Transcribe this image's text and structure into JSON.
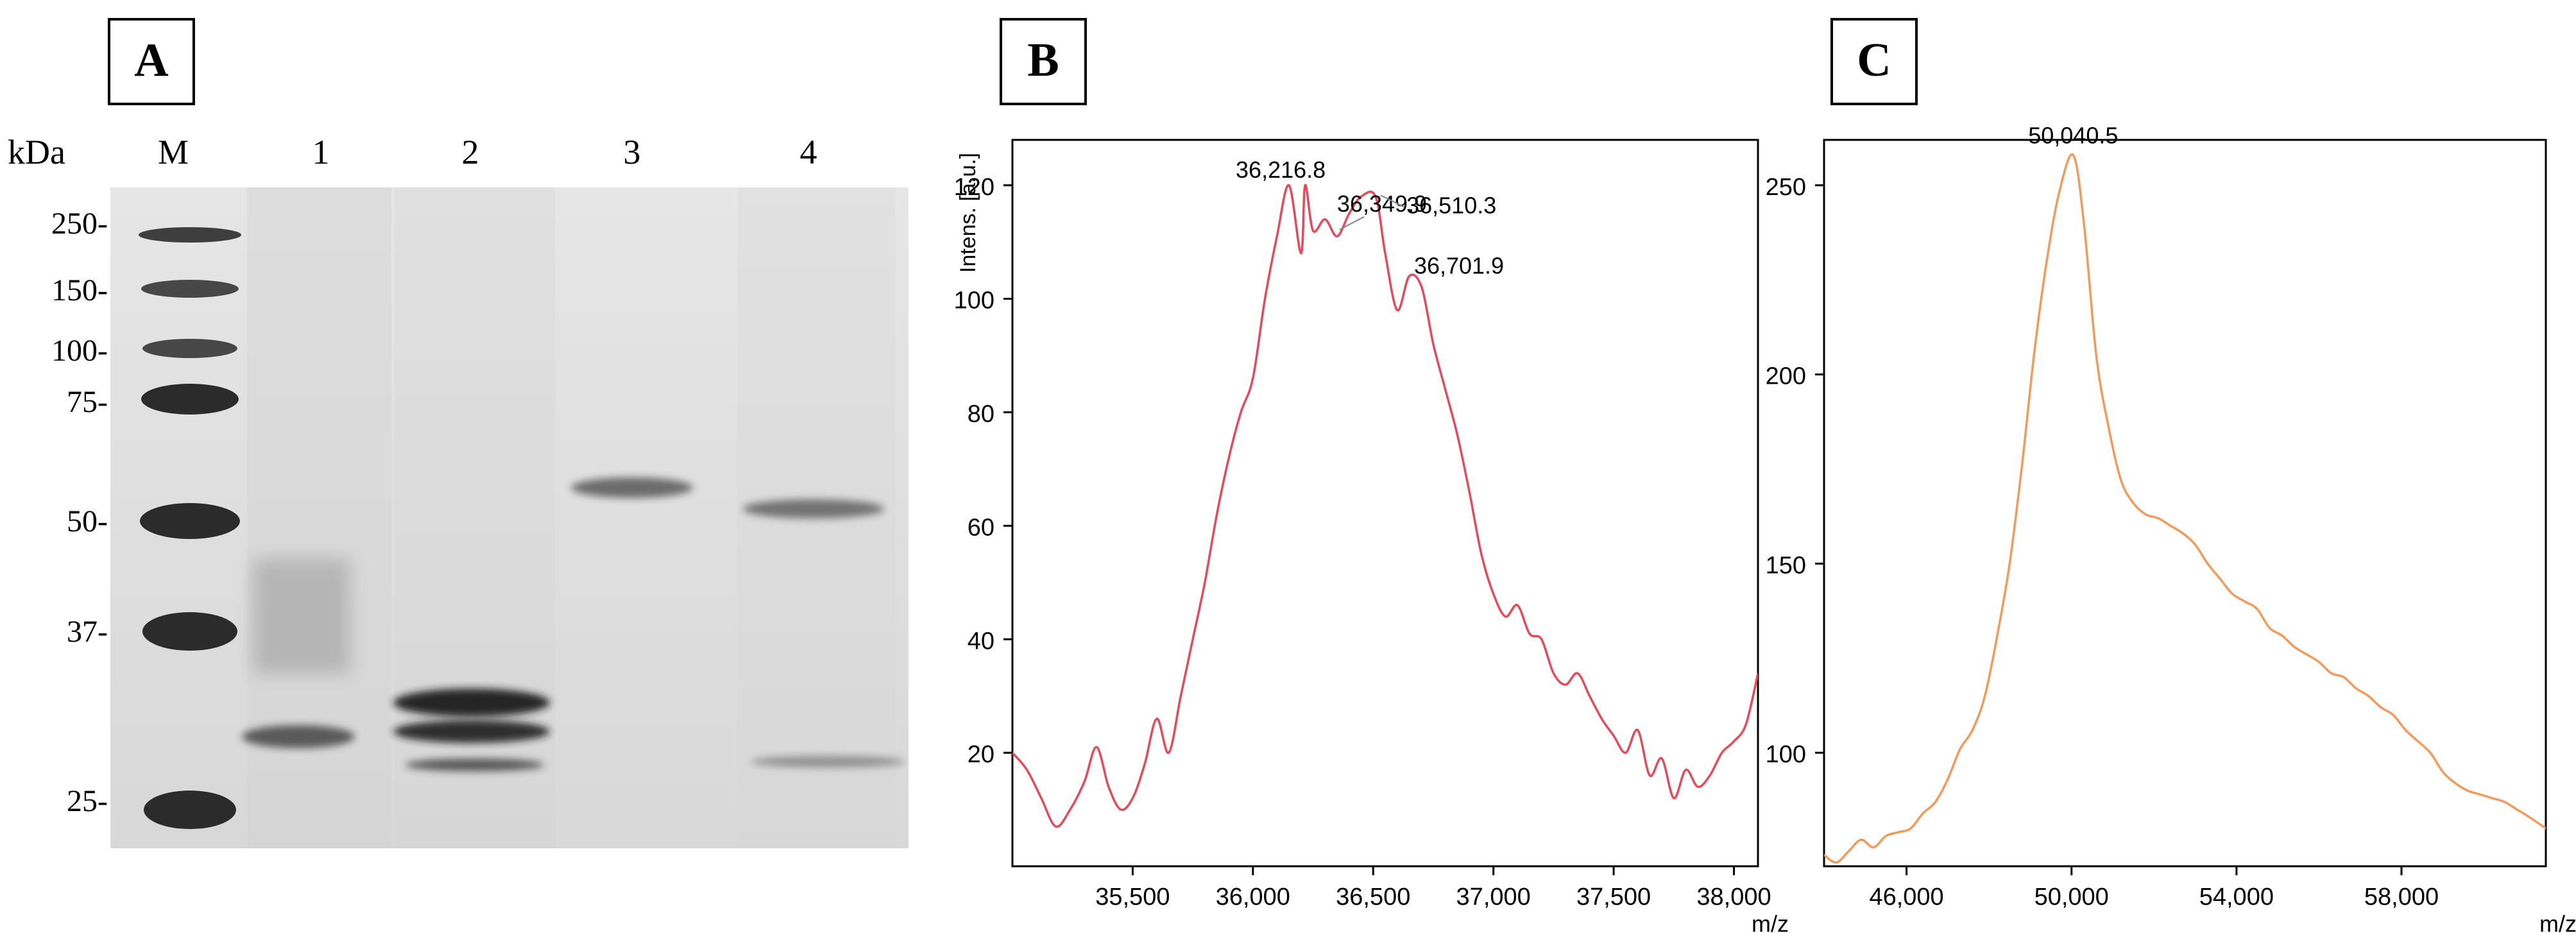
{
  "panels": {
    "A": {
      "label": "A",
      "unit_label": "kDa",
      "lane_labels": [
        "M",
        "1",
        "2",
        "3",
        "4"
      ],
      "marker_labels": [
        "250-",
        "150-",
        "100-",
        "75-",
        "50-",
        "37-",
        "25-"
      ]
    },
    "B": {
      "label": "B"
    },
    "C": {
      "label": "C"
    }
  },
  "colors": {
    "spectrum_B": "#e8485a",
    "spectrum_C": "#f39a5a",
    "axis": "#000000",
    "gel_background": "#dedede",
    "band": "#2b2b2b"
  },
  "chart_data": [
    {
      "type": "line",
      "panel": "B",
      "ylabel": "Intens. [a.u.]",
      "xlabel": "m/z",
      "xlim": [
        35000,
        38100
      ],
      "ylim": [
        0,
        128
      ],
      "xticks": [
        35500,
        36000,
        36500,
        37000,
        37500,
        38000
      ],
      "xtick_labels": [
        "35,500",
        "36,000",
        "36,500",
        "37,000",
        "37,500",
        "38,000"
      ],
      "yticks": [
        20,
        40,
        60,
        80,
        100,
        120
      ],
      "ytick_labels": [
        "20",
        "40",
        "60",
        "80",
        "100",
        "120"
      ],
      "annotations": [
        {
          "text": "36,216.8",
          "x": 36216.8,
          "y": 120
        },
        {
          "text": "36,349.9",
          "x": 36349.9,
          "y": 114
        },
        {
          "text": "36,510.3",
          "x": 36510.3,
          "y": 118
        },
        {
          "text": "36,701.9",
          "x": 36701.9,
          "y": 104
        }
      ],
      "x": [
        35000,
        35060,
        35120,
        35180,
        35240,
        35300,
        35350,
        35400,
        35450,
        35500,
        35550,
        35600,
        35650,
        35700,
        35750,
        35800,
        35850,
        35900,
        35950,
        36000,
        36050,
        36100,
        36150,
        36200,
        36217,
        36250,
        36300,
        36350,
        36400,
        36450,
        36510,
        36550,
        36600,
        36650,
        36702,
        36750,
        36800,
        36850,
        36900,
        36950,
        37000,
        37050,
        37100,
        37150,
        37200,
        37250,
        37300,
        37350,
        37400,
        37450,
        37500,
        37550,
        37600,
        37650,
        37700,
        37750,
        37800,
        37850,
        37900,
        37950,
        38000,
        38050,
        38100
      ],
      "y": [
        20,
        17,
        12,
        7,
        10,
        15,
        21,
        14,
        10,
        12,
        18,
        26,
        20,
        30,
        40,
        50,
        62,
        72,
        80,
        86,
        100,
        111,
        120,
        108,
        120,
        112,
        114,
        111,
        115,
        118,
        118,
        108,
        98,
        104,
        102,
        92,
        84,
        76,
        66,
        55,
        48,
        44,
        46,
        41,
        40,
        34,
        32,
        34,
        30,
        26,
        23,
        20,
        24,
        16,
        19,
        12,
        17,
        14,
        16,
        20,
        22,
        25,
        34
      ]
    },
    {
      "type": "line",
      "panel": "C",
      "xlabel": "m/z",
      "xlim": [
        44000,
        61500
      ],
      "ylim": [
        70,
        262
      ],
      "xticks": [
        46000,
        50000,
        54000,
        58000
      ],
      "xtick_labels": [
        "46,000",
        "50,000",
        "54,000",
        "58,000"
      ],
      "yticks": [
        100,
        150,
        200,
        250
      ],
      "ytick_labels": [
        "100",
        "150",
        "200",
        "250"
      ],
      "annotations": [
        {
          "text": "50,040.5",
          "x": 50040.5,
          "y": 258
        }
      ],
      "x": [
        44000,
        44300,
        44600,
        44900,
        45200,
        45500,
        45800,
        46100,
        46400,
        46700,
        47000,
        47300,
        47600,
        47900,
        48200,
        48500,
        48800,
        49100,
        49400,
        49700,
        50040,
        50300,
        50600,
        50900,
        51200,
        51500,
        51800,
        52100,
        52400,
        52700,
        53000,
        53300,
        53600,
        53900,
        54200,
        54500,
        54800,
        55100,
        55400,
        55700,
        56000,
        56300,
        56600,
        56900,
        57200,
        57500,
        57800,
        58100,
        58400,
        58700,
        59000,
        59300,
        59600,
        59900,
        60200,
        60500,
        60800,
        61100,
        61500
      ],
      "y": [
        73,
        71,
        74,
        77,
        75,
        78,
        79,
        80,
        84,
        87,
        93,
        101,
        106,
        115,
        131,
        150,
        176,
        206,
        230,
        248,
        258,
        240,
        205,
        186,
        172,
        166,
        163,
        162,
        160,
        158,
        155,
        150,
        146,
        142,
        140,
        138,
        133,
        131,
        128,
        126,
        124,
        121,
        120,
        117,
        115,
        112,
        110,
        106,
        103,
        100,
        95,
        92,
        90,
        89,
        88,
        87,
        85,
        83,
        80
      ]
    }
  ]
}
